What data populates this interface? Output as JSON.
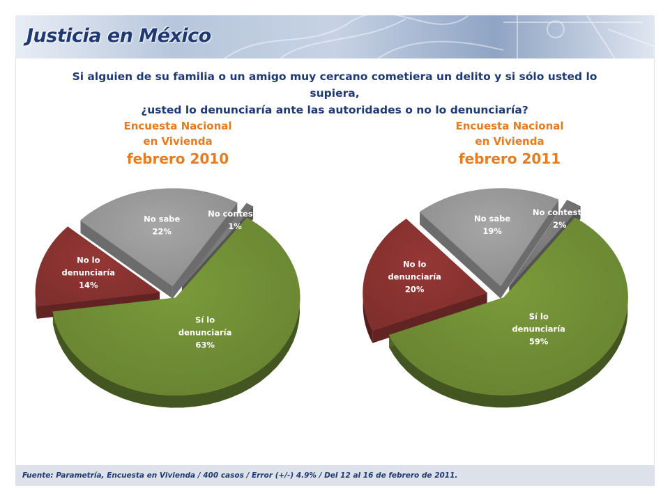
{
  "header": {
    "title": "Justicia en México"
  },
  "question": {
    "line1": "Si alguien de su familia o un amigo muy cercano cometiera un delito y si sólo usted lo supiera,",
    "line2": "¿usted lo denunciaría ante las autoridades o no lo denunciaría?"
  },
  "footer": {
    "source": "Fuente: Parametría, Encuesta en Vivienda / 400 casos / Error (+/-) 4.9% / Del 12 al 16 de febrero de 2011."
  },
  "colors": {
    "si": "#7a9a3a",
    "no": "#953735",
    "nosabe": "#a6a6a6",
    "nocontesta": "#808080",
    "title": "#1f3a73",
    "survey": "#e37c22"
  },
  "chart_data": [
    {
      "type": "pie",
      "title_line1": "Encuesta Nacional",
      "title_line2": "en Vivienda",
      "title_line3": "febrero 2010",
      "slices": [
        {
          "label_line1": "Sí lo",
          "label_line2": "denunciaría",
          "pct": "63%",
          "value": 63
        },
        {
          "label_line1": "No lo",
          "label_line2": "denunciaría",
          "pct": "14%",
          "value": 14
        },
        {
          "label_line1": "No sabe",
          "label_line2": "",
          "pct": "22%",
          "value": 22
        },
        {
          "label_line1": "No contesta",
          "label_line2": "",
          "pct": "1%",
          "value": 1
        }
      ]
    },
    {
      "type": "pie",
      "title_line1": "Encuesta Nacional",
      "title_line2": "en Vivienda",
      "title_line3": "febrero 2011",
      "slices": [
        {
          "label_line1": "Sí lo",
          "label_line2": "denunciaría",
          "pct": "59%",
          "value": 59
        },
        {
          "label_line1": "No lo",
          "label_line2": "denunciaría",
          "pct": "20%",
          "value": 20
        },
        {
          "label_line1": "No sabe",
          "label_line2": "",
          "pct": "19%",
          "value": 19
        },
        {
          "label_line1": "No contesta",
          "label_line2": "",
          "pct": "2%",
          "value": 2
        }
      ]
    }
  ]
}
